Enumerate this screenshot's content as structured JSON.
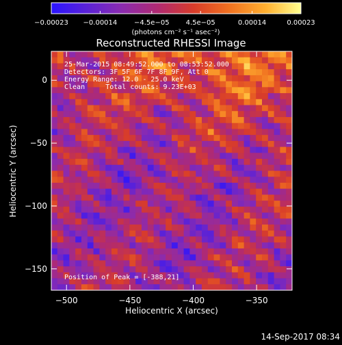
{
  "chart_data": {
    "type": "heatmap",
    "title": "Reconstructed RHESSI Image",
    "xlabel": "Heliocentric X (arcsec)",
    "ylabel": "Heliocentric Y (arcsec)",
    "xlim": [
      -512,
      -322
    ],
    "ylim": [
      -167,
      23
    ],
    "x_ticks": [
      -500,
      -450,
      -400,
      -350
    ],
    "y_ticks": [
      0,
      -50,
      -100,
      -150
    ],
    "x_tick_labels": [
      "−500",
      "−450",
      "−400",
      "−350"
    ],
    "y_tick_labels": [
      "0",
      "−50",
      "−100",
      "−150"
    ],
    "colorbar": {
      "min": -0.00023,
      "max": 0.00023,
      "ticks": [
        -0.00023,
        -0.00014,
        -4.5e-05,
        4.5e-05,
        0.00014,
        0.00023
      ],
      "tick_labels": [
        "−0.00023",
        "−0.00014",
        "−4.5e−05",
        "4.5e−05",
        "0.00014",
        "0.00023"
      ],
      "units_label": "(photons cm⁻² s⁻¹ asec⁻²)",
      "colormap_stops": [
        "#2a14ff",
        "#5a22d8",
        "#8a2bb0",
        "#b12a70",
        "#d83c2a",
        "#f07020",
        "#ffb030",
        "#ffff90"
      ]
    },
    "annotations": {
      "time": "25-Mar-2015 08:49:52.000 to 08:53:52.000",
      "detectors": "Detectors: 3F 5F 6F 7F 8F 9F, Att 0",
      "energy": "Energy Range: 12.0 - 25.0 keV",
      "clean": "Clean     Total counts: 9.23E+03",
      "peak": "Position of Peak = [-388,21]"
    },
    "timestamp": "14-Sep-2017 08:34"
  }
}
